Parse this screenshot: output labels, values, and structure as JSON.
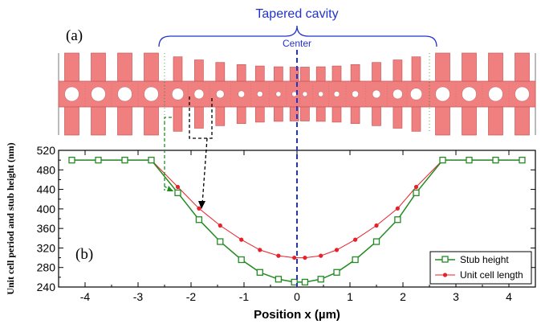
{
  "panel_labels": {
    "a": "(a)",
    "b": "(b)"
  },
  "cavity": {
    "title": "Tapered cavity",
    "center_label": "Center"
  },
  "colors": {
    "cell_fill": "#f08080",
    "cell_stroke": "#c85a5a",
    "stub_series": "#228B22",
    "unit_series": "#e8202a",
    "center_line": "#2233cc",
    "cavity_text": "#2233cc"
  },
  "chart_data": {
    "type": "line",
    "xlabel": "Position x (µm)",
    "ylabel": "Unit cell period and stub height (nm)",
    "xlim": [
      -4.5,
      4.5
    ],
    "ylim": [
      240,
      520
    ],
    "xticks": [
      -4,
      -3,
      -2,
      -1,
      0,
      1,
      2,
      3,
      4
    ],
    "yticks": [
      240,
      280,
      320,
      360,
      400,
      440,
      480,
      520
    ],
    "minor_xticks": [
      -4.5,
      -3.5,
      -2.5,
      -1.5,
      -0.5,
      0.5,
      1.5,
      2.5,
      3.5,
      4.5
    ],
    "minor_yticks": [
      260,
      300,
      340,
      380,
      420,
      460,
      500
    ],
    "grid": false,
    "legend_position": "bottom-right",
    "series": [
      {
        "name": "Stub height",
        "marker": "open-square",
        "x": [
          -4.25,
          -3.75,
          -3.25,
          -2.75,
          -2.25,
          -1.85,
          -1.45,
          -1.05,
          -0.7,
          -0.35,
          -0.05,
          0.15,
          0.45,
          0.75,
          1.1,
          1.5,
          1.9,
          2.25,
          2.75,
          3.25,
          3.75,
          4.25
        ],
        "values": [
          500,
          500,
          500,
          500,
          433,
          378,
          333,
          296,
          270,
          256,
          250,
          250,
          256,
          270,
          296,
          333,
          378,
          433,
          500,
          500,
          500,
          500
        ]
      },
      {
        "name": "Unit cell length",
        "marker": "filled-circle",
        "x": [
          -4.25,
          -3.75,
          -3.25,
          -2.75,
          -2.25,
          -1.85,
          -1.45,
          -1.05,
          -0.7,
          -0.35,
          -0.05,
          0.15,
          0.45,
          0.75,
          1.1,
          1.5,
          1.9,
          2.25,
          2.75,
          3.25,
          3.75,
          4.25
        ],
        "values": [
          500,
          500,
          500,
          500,
          445,
          401,
          366,
          337,
          316,
          304,
          300,
          300,
          304,
          316,
          337,
          366,
          401,
          445,
          500,
          500,
          500,
          500
        ]
      }
    ]
  }
}
